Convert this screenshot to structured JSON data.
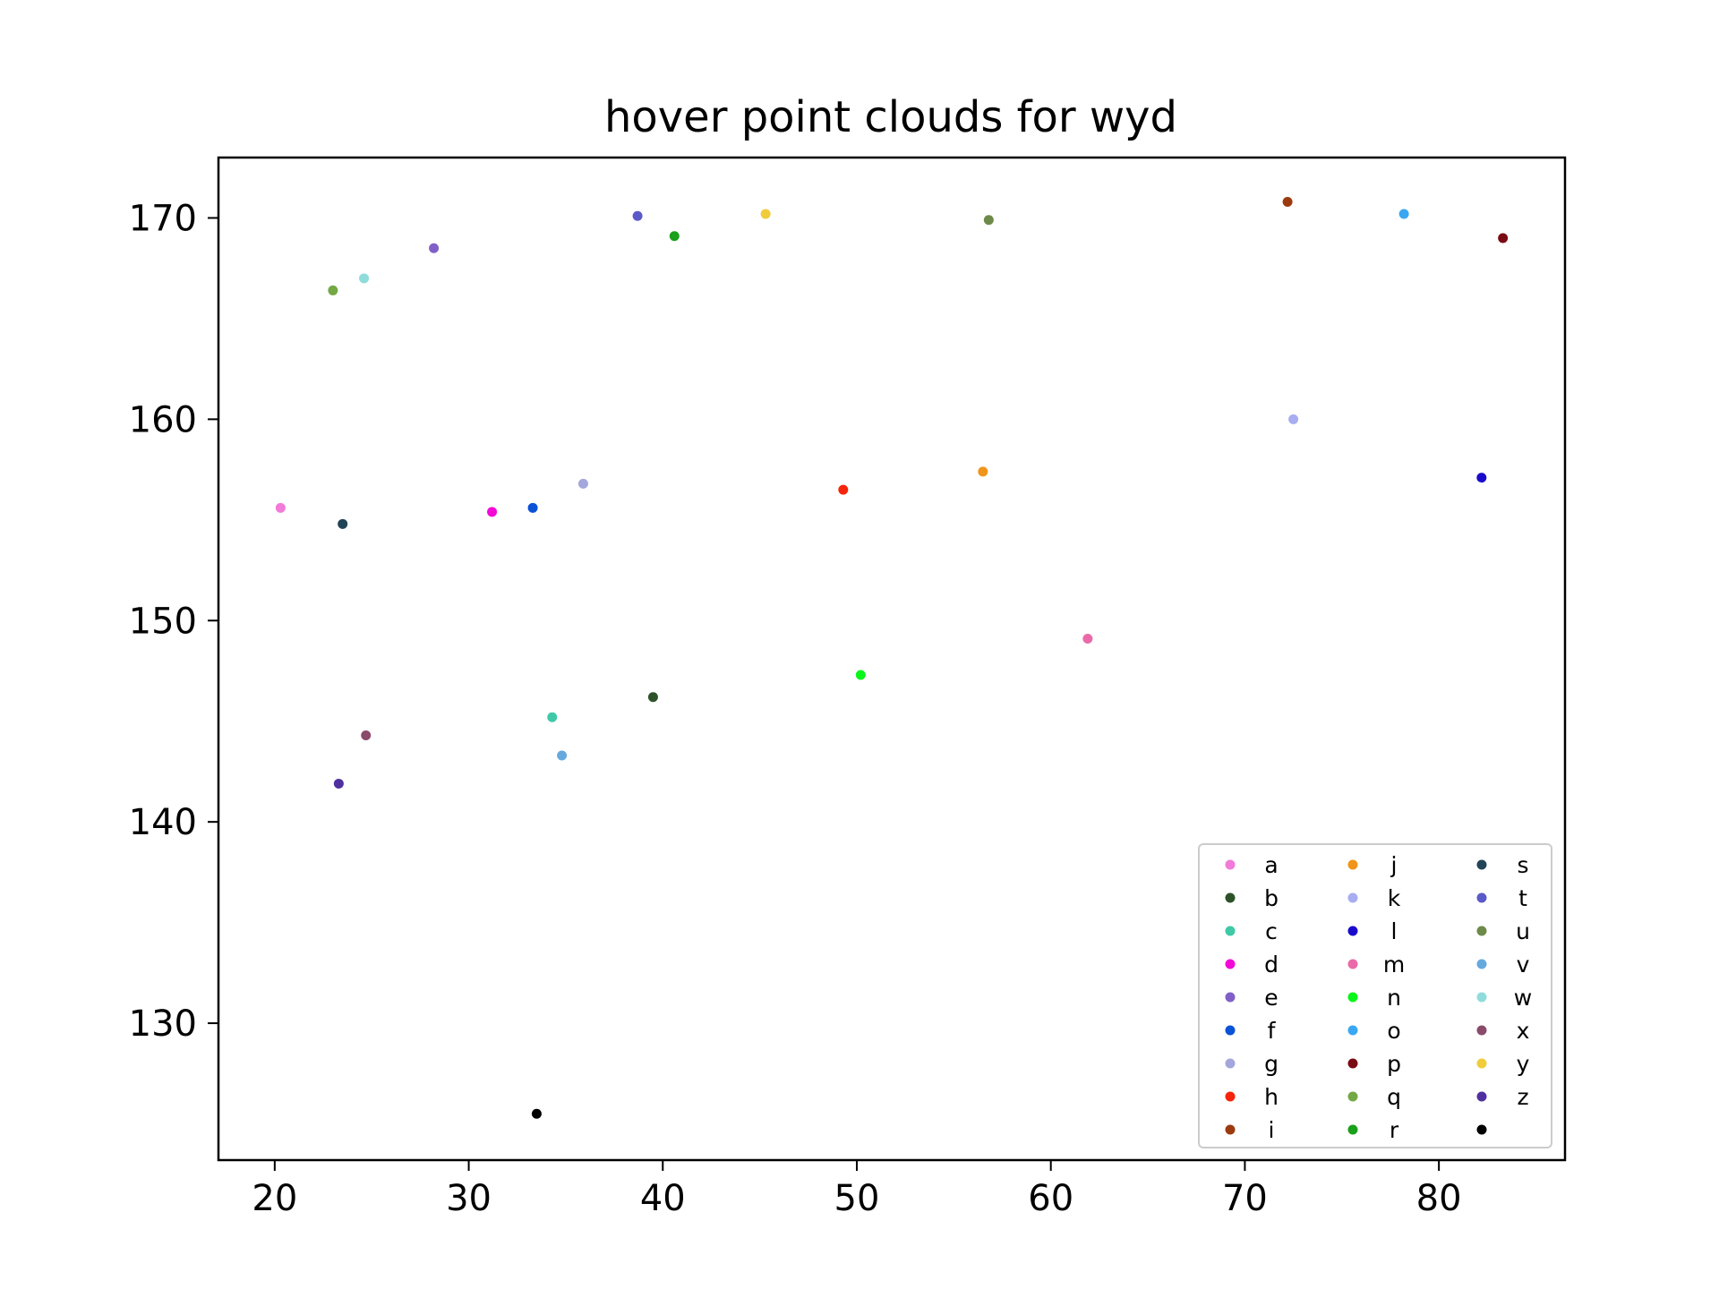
{
  "chart_data": {
    "type": "scatter",
    "title": "hover point clouds for wyd",
    "xlabel": "",
    "ylabel": "",
    "xlim": [
      17.1,
      86.5
    ],
    "ylim": [
      123.2,
      173.0
    ],
    "xticks": [
      20,
      30,
      40,
      50,
      60,
      70,
      80
    ],
    "yticks": [
      130,
      140,
      150,
      160,
      170
    ],
    "grid": false,
    "legend_position": "lower-right",
    "legend_columns": 3,
    "series": [
      {
        "name": "a",
        "color": "#f27ad9",
        "x": [
          20.3
        ],
        "y": [
          155.6
        ]
      },
      {
        "name": "b",
        "color": "#2d5229",
        "x": [
          39.5
        ],
        "y": [
          146.2
        ]
      },
      {
        "name": "c",
        "color": "#3fc9a6",
        "x": [
          34.3
        ],
        "y": [
          145.2
        ]
      },
      {
        "name": "d",
        "color": "#f20ad6",
        "x": [
          31.2
        ],
        "y": [
          155.4
        ]
      },
      {
        "name": "e",
        "color": "#8060c8",
        "x": [
          28.2
        ],
        "y": [
          168.5
        ]
      },
      {
        "name": "f",
        "color": "#0a52d6",
        "x": [
          33.3
        ],
        "y": [
          155.6
        ]
      },
      {
        "name": "g",
        "color": "#a3a7db",
        "x": [
          35.9
        ],
        "y": [
          156.8
        ]
      },
      {
        "name": "h",
        "color": "#f5240a",
        "x": [
          49.3
        ],
        "y": [
          156.5
        ]
      },
      {
        "name": "i",
        "color": "#9c3a0f",
        "x": [
          72.2
        ],
        "y": [
          170.8
        ]
      },
      {
        "name": "j",
        "color": "#f0941a",
        "x": [
          56.5
        ],
        "y": [
          157.4
        ]
      },
      {
        "name": "k",
        "color": "#a7adf0",
        "x": [
          72.5
        ],
        "y": [
          160.0
        ]
      },
      {
        "name": "l",
        "color": "#1a0acc",
        "x": [
          82.2
        ],
        "y": [
          157.1
        ]
      },
      {
        "name": "m",
        "color": "#ea6ba8",
        "x": [
          61.9
        ],
        "y": [
          149.1
        ]
      },
      {
        "name": "n",
        "color": "#0af51a",
        "x": [
          50.2
        ],
        "y": [
          147.3
        ]
      },
      {
        "name": "o",
        "color": "#3aa7f2",
        "x": [
          78.2
        ],
        "y": [
          170.2
        ]
      },
      {
        "name": "p",
        "color": "#7a0a14",
        "x": [
          83.3
        ],
        "y": [
          169.0
        ]
      },
      {
        "name": "q",
        "color": "#74a844",
        "x": [
          23.0
        ],
        "y": [
          166.4
        ]
      },
      {
        "name": "r",
        "color": "#1aa01a",
        "x": [
          40.6
        ],
        "y": [
          169.1
        ]
      },
      {
        "name": "s",
        "color": "#224457",
        "x": [
          23.5
        ],
        "y": [
          154.8
        ]
      },
      {
        "name": "t",
        "color": "#5a5ac8",
        "x": [
          38.7
        ],
        "y": [
          170.1
        ]
      },
      {
        "name": "u",
        "color": "#6e8a4a",
        "x": [
          56.8
        ],
        "y": [
          169.9
        ]
      },
      {
        "name": "v",
        "color": "#66aadd",
        "x": [
          34.8
        ],
        "y": [
          143.3
        ]
      },
      {
        "name": "w",
        "color": "#90dcdc",
        "x": [
          24.6
        ],
        "y": [
          167.0
        ]
      },
      {
        "name": "x",
        "color": "#8a4a6a",
        "x": [
          24.7
        ],
        "y": [
          144.3
        ]
      },
      {
        "name": "y",
        "color": "#f0cc3a",
        "x": [
          45.3
        ],
        "y": [
          170.2
        ]
      },
      {
        "name": "z",
        "color": "#5030a0",
        "x": [
          23.3
        ],
        "y": [
          141.9
        ]
      },
      {
        "name": "",
        "color": "#000000",
        "x": [
          33.5
        ],
        "y": [
          125.5
        ]
      }
    ]
  }
}
